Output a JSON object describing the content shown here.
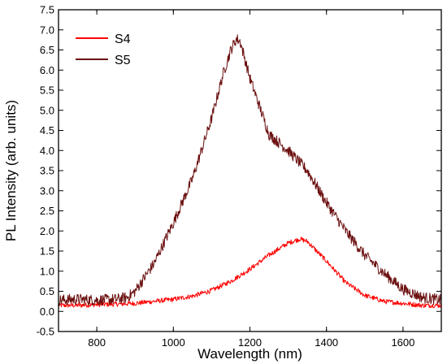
{
  "chart_data": {
    "type": "line",
    "title": "",
    "xlabel": "Wavelength (nm)",
    "ylabel": "PL Intensity (arb. units)",
    "xlim": [
      700,
      1700
    ],
    "ylim": [
      -0.5,
      7.5
    ],
    "x_ticks": [
      800,
      1000,
      1200,
      1400,
      1600
    ],
    "x_tick_labels": [
      "800",
      "1000",
      "1200",
      "1400",
      "1600"
    ],
    "y_ticks": [
      -0.5,
      0.0,
      0.5,
      1.0,
      1.5,
      2.0,
      2.5,
      3.0,
      3.5,
      4.0,
      4.5,
      5.0,
      5.5,
      6.0,
      6.5,
      7.0,
      7.5
    ],
    "y_tick_labels": [
      "-0.5",
      "0.0",
      "0.5",
      "1.0",
      "1.5",
      "2.0",
      "2.5",
      "3.0",
      "3.5",
      "4.0",
      "4.5",
      "5.0",
      "5.5",
      "6.0",
      "6.5",
      "7.0",
      "7.5"
    ],
    "grid": false,
    "legend_position": "top-left",
    "series": [
      {
        "name": "S4",
        "color": "#ff0000",
        "x": [
          700,
          750,
          800,
          850,
          900,
          950,
          1000,
          1050,
          1100,
          1150,
          1200,
          1250,
          1300,
          1330,
          1350,
          1400,
          1450,
          1500,
          1550,
          1600,
          1650,
          1700
        ],
        "y": [
          0.15,
          0.15,
          0.17,
          0.18,
          0.2,
          0.25,
          0.3,
          0.38,
          0.52,
          0.75,
          1.05,
          1.4,
          1.7,
          1.8,
          1.74,
          1.25,
          0.72,
          0.4,
          0.25,
          0.2,
          0.15,
          0.15
        ]
      },
      {
        "name": "S5",
        "color": "#6b0f0f",
        "x": [
          700,
          750,
          800,
          850,
          880,
          900,
          950,
          1000,
          1050,
          1100,
          1130,
          1150,
          1165,
          1175,
          1200,
          1250,
          1300,
          1350,
          1400,
          1450,
          1500,
          1550,
          1600,
          1650,
          1700
        ],
        "y": [
          0.28,
          0.3,
          0.28,
          0.3,
          0.35,
          0.5,
          1.2,
          2.2,
          3.3,
          4.8,
          5.9,
          6.5,
          6.78,
          6.7,
          5.8,
          4.4,
          4.0,
          3.5,
          2.7,
          2.0,
          1.4,
          0.95,
          0.55,
          0.35,
          0.28
        ]
      }
    ]
  }
}
